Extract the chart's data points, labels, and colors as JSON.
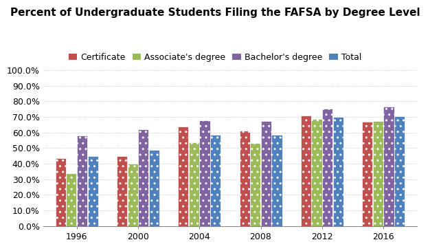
{
  "title": "Percent of Undergraduate Students Filing the FAFSA by Degree Level",
  "years": [
    1996,
    2000,
    2004,
    2008,
    2012,
    2016
  ],
  "series": {
    "Certificate": [
      0.435,
      0.45,
      0.637,
      0.61,
      0.71,
      0.668
    ],
    "Associate's degree": [
      0.34,
      0.402,
      0.535,
      0.533,
      0.685,
      0.673
    ],
    "Bachelor's degree": [
      0.58,
      0.622,
      0.68,
      0.675,
      0.755,
      0.765
    ],
    "Total": [
      0.447,
      0.49,
      0.585,
      0.585,
      0.7,
      0.703
    ]
  },
  "colors": {
    "Certificate": "#C0504D",
    "Associate's degree": "#9BBB59",
    "Bachelor's degree": "#8064A2",
    "Total": "#4F81BD"
  },
  "hatch": {
    "Certificate": "..",
    "Associate's degree": "..",
    "Bachelor's degree": "..",
    "Total": ".."
  },
  "ylim": [
    0.0,
    1.0
  ],
  "yticks": [
    0.0,
    0.1,
    0.2,
    0.3,
    0.4,
    0.5,
    0.6,
    0.7,
    0.8,
    0.9,
    1.0
  ],
  "ytick_labels": [
    "0.0%",
    "10.0%",
    "20.0%",
    "30.0%",
    "40.0%",
    "50.0%",
    "60.0%",
    "70.0%",
    "80.0%",
    "90.0%",
    "100.0%"
  ],
  "bar_width": 0.17,
  "legend_order": [
    "Certificate",
    "Associate's degree",
    "Bachelor's degree",
    "Total"
  ],
  "background_color": "#FFFFFF",
  "grid_color": "#AAAAAA",
  "title_fontsize": 11,
  "tick_fontsize": 9,
  "legend_fontsize": 9
}
